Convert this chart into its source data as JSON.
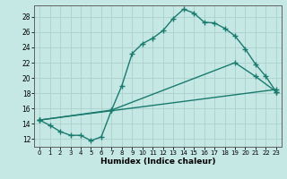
{
  "xlabel": "Humidex (Indice chaleur)",
  "xlim": [
    -0.5,
    23.5
  ],
  "ylim": [
    11.0,
    29.5
  ],
  "xticks": [
    0,
    1,
    2,
    3,
    4,
    5,
    6,
    7,
    8,
    9,
    10,
    11,
    12,
    13,
    14,
    15,
    16,
    17,
    18,
    19,
    20,
    21,
    22,
    23
  ],
  "yticks": [
    12,
    14,
    16,
    18,
    20,
    22,
    24,
    26,
    28
  ],
  "bg_color": "#c5e8e5",
  "grid_color": "#aacfcc",
  "line_color": "#1a7a6e",
  "curve1_x": [
    0,
    1,
    2,
    3,
    4,
    5,
    6,
    7,
    8,
    9,
    10,
    11,
    12,
    13,
    14,
    15,
    16,
    17,
    18,
    19,
    20,
    21,
    22,
    23
  ],
  "curve1_y": [
    14.5,
    13.8,
    13.0,
    12.5,
    12.5,
    11.8,
    12.3,
    15.8,
    19.0,
    23.2,
    24.5,
    25.2,
    26.2,
    27.8,
    29.0,
    28.5,
    27.3,
    27.2,
    26.5,
    25.5,
    23.8,
    21.8,
    20.2,
    18.2
  ],
  "curve2_x": [
    0,
    7,
    19,
    21,
    23
  ],
  "curve2_y": [
    14.5,
    15.8,
    22.0,
    20.2,
    18.2
  ],
  "curve3_x": [
    0,
    23
  ],
  "curve3_y": [
    14.5,
    18.5
  ],
  "marker": "+",
  "markersize": 4.0,
  "linewidth": 1.0
}
